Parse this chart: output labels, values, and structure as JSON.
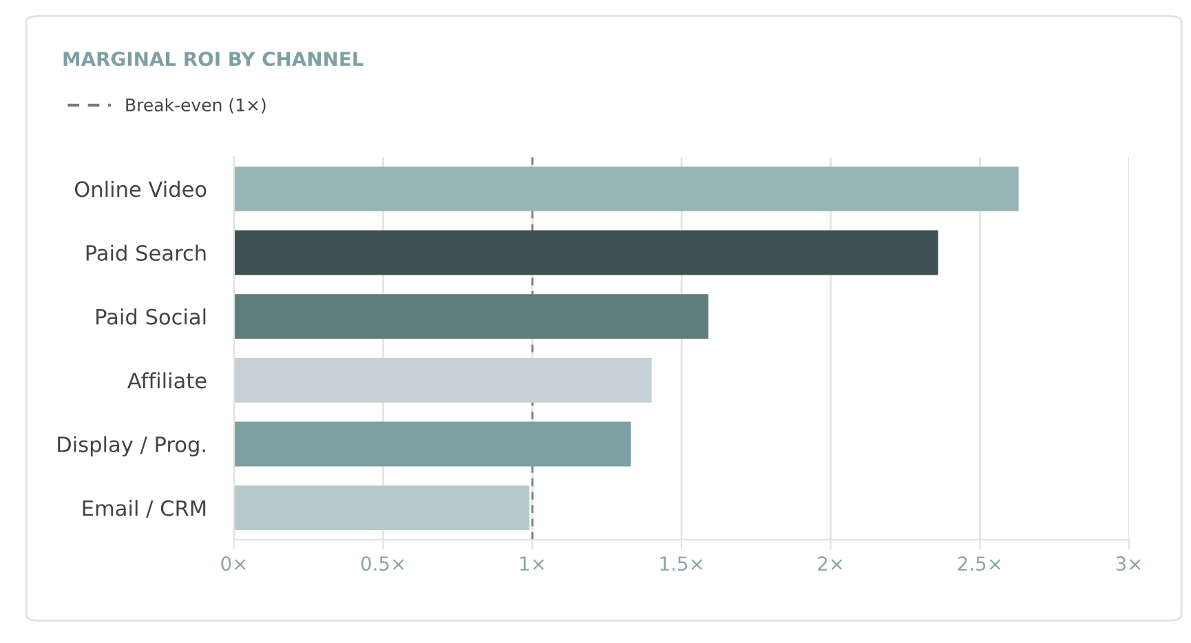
{
  "chart_data": {
    "type": "bar",
    "orientation": "horizontal",
    "title": "MARGINAL ROI BY CHANNEL",
    "categories": [
      "Online Video",
      "Paid Search",
      "Paid Social",
      "Affiliate",
      "Display / Prog.",
      "Email / CRM"
    ],
    "values": [
      2.63,
      2.36,
      1.59,
      1.4,
      1.33,
      0.99
    ],
    "colors": [
      "#97b5b7",
      "#3d5155",
      "#5f7d7d",
      "#c5d1d4",
      "#7da0a2",
      "#b8c9cb"
    ],
    "xlim": [
      0,
      3
    ],
    "xticks": [
      {
        "value": 0,
        "label": "0×"
      },
      {
        "value": 0.5,
        "label": "0.5×"
      },
      {
        "value": 1,
        "label": "1×"
      },
      {
        "value": 1.5,
        "label": "1.5×"
      },
      {
        "value": 2,
        "label": "2×"
      },
      {
        "value": 2.5,
        "label": "2.5×"
      },
      {
        "value": 3,
        "label": "3×"
      }
    ],
    "ref_lines": [
      {
        "axis": "x",
        "value": 1,
        "label": "Break-even (1×)",
        "color": "#7a7a7a",
        "line_style": "dashed"
      }
    ],
    "grid": "x",
    "legend": "top left"
  }
}
